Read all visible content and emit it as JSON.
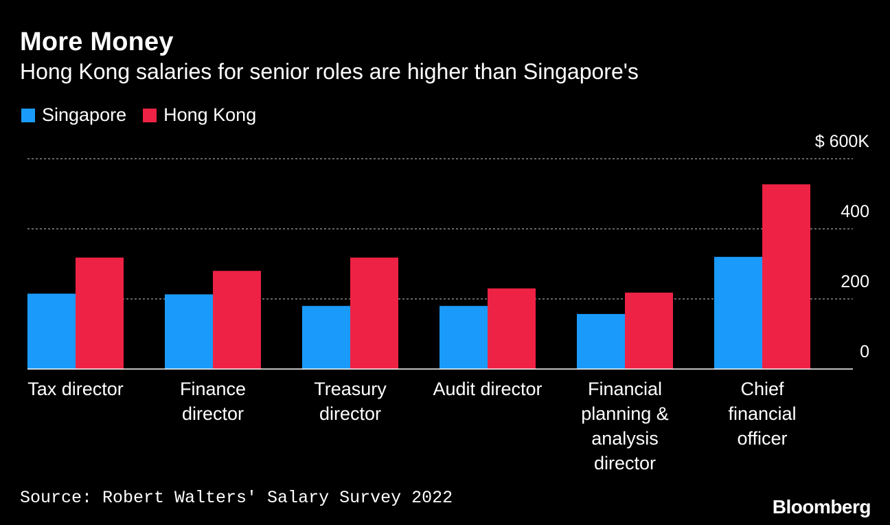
{
  "title": "More Money",
  "subtitle": "Hong Kong salaries for senior roles are higher than Singapore's",
  "source": "Source: Robert Walters' Salary Survey 2022",
  "brand": "Bloomberg",
  "colors": {
    "singapore": "#1a9bfc",
    "hong_kong": "#ee2244",
    "grid": "#888888",
    "background": "#000000",
    "text": "#ffffff"
  },
  "chart_data": {
    "type": "bar",
    "title": "More Money",
    "subtitle": "Hong Kong salaries for senior roles are higher than Singapore's",
    "categories": [
      [
        "Tax director"
      ],
      [
        "Finance",
        "director"
      ],
      [
        "Treasury",
        "director"
      ],
      [
        "Audit director"
      ],
      [
        "Financial",
        "planning &",
        "analysis",
        "director"
      ],
      [
        "Chief",
        "financial",
        "officer"
      ]
    ],
    "series": [
      {
        "name": "Singapore",
        "color": "#1a9bfc",
        "values": [
          215,
          213,
          180,
          180,
          157,
          320
        ]
      },
      {
        "name": "Hong Kong",
        "color": "#ee2244",
        "values": [
          318,
          280,
          318,
          230,
          218,
          527
        ]
      }
    ],
    "y_ticks": [
      {
        "value": 0,
        "label": "0"
      },
      {
        "value": 200,
        "label": "200"
      },
      {
        "value": 400,
        "label": "400"
      },
      {
        "value": 600,
        "label": "$ 600K"
      }
    ],
    "ylim": [
      0,
      600
    ],
    "xlabel": "",
    "ylabel": "",
    "grid": true,
    "legend_position": "top-left"
  }
}
